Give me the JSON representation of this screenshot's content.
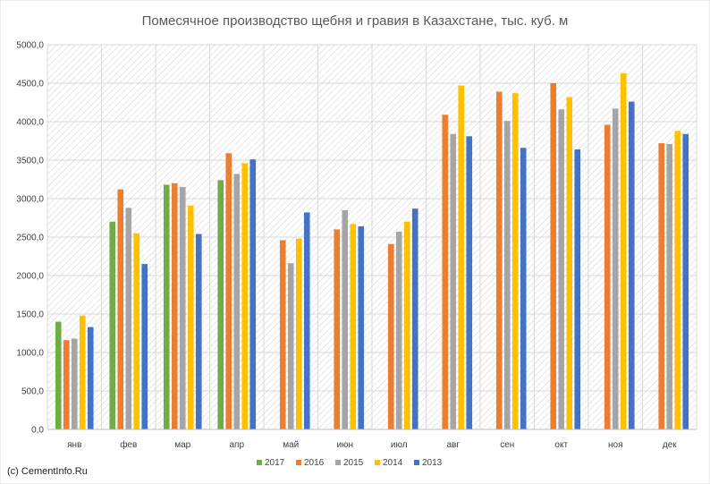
{
  "chart_data": {
    "type": "bar",
    "title": "Помесячное производство щебня и гравия в Казахстане, тыс. куб. м",
    "categories": [
      "янв",
      "фев",
      "мар",
      "апр",
      "май",
      "июн",
      "июл",
      "авг",
      "сен",
      "окт",
      "ноя",
      "дек"
    ],
    "ylim": [
      0,
      5000
    ],
    "yticks": [
      "0,0",
      "500,0",
      "1000,0",
      "1500,0",
      "2000,0",
      "2500,0",
      "3000,0",
      "3500,0",
      "4000,0",
      "4500,0",
      "5000,0"
    ],
    "grid": true,
    "legend_position": "bottom",
    "series": [
      {
        "name": "2017",
        "color": "#70ad47",
        "values": [
          1400,
          2700,
          3180,
          3240,
          null,
          null,
          null,
          null,
          null,
          null,
          null,
          null
        ]
      },
      {
        "name": "2016",
        "color": "#ed7d31",
        "values": [
          1160,
          3120,
          3200,
          3590,
          2460,
          2600,
          2410,
          4090,
          4390,
          4500,
          3960,
          3720
        ]
      },
      {
        "name": "2015",
        "color": "#a5a5a5",
        "values": [
          1180,
          2880,
          3150,
          3320,
          2160,
          2850,
          2570,
          3840,
          4010,
          4160,
          4170,
          3710
        ]
      },
      {
        "name": "2014",
        "color": "#ffc000",
        "values": [
          1480,
          2550,
          2910,
          3460,
          2480,
          2670,
          2700,
          4470,
          4370,
          4320,
          4630,
          3880
        ]
      },
      {
        "name": "2013",
        "color": "#4472c4",
        "values": [
          1330,
          2150,
          2540,
          3510,
          2820,
          2640,
          2870,
          3810,
          3660,
          3640,
          4260,
          3840
        ]
      }
    ]
  },
  "credit": "(c) CementInfo.Ru"
}
